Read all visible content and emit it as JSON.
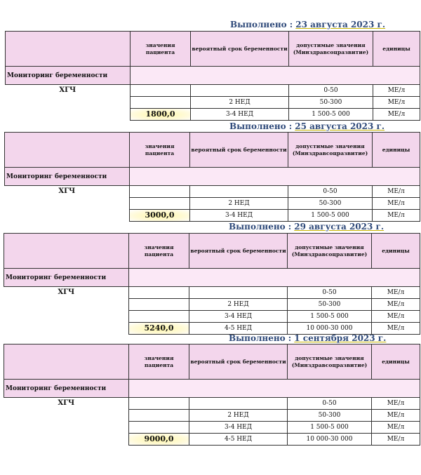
{
  "headings": [
    {
      "label": "Выполнено :",
      "date": "23 августа 2023 г."
    },
    {
      "label": "Выполнено :",
      "date": "25 августа 2023 г."
    },
    {
      "label": "Выполнено :",
      "date": "29 августа 2023 г."
    },
    {
      "label": "Выполнено :",
      "date": "1 сентября 2023 г."
    }
  ],
  "columns": {
    "patient": "значения пациента",
    "term": "вероятный срок беременности",
    "ref": "допустимые значения (Минздравсоцразвитие)",
    "units": "единицы"
  },
  "section": "Мониторинг беременности",
  "test": "ХГЧ",
  "reports": [
    {
      "value": "1800,0",
      "rows": [
        {
          "term": "",
          "ref": "0-50",
          "unit": "МЕ/л"
        },
        {
          "term": "2 НЕД",
          "ref": "50-300",
          "unit": "МЕ/л"
        },
        {
          "term": "3-4 НЕД",
          "ref": "1 500-5 000",
          "unit": "МЕ/л"
        }
      ]
    },
    {
      "value": "3000,0",
      "rows": [
        {
          "term": "",
          "ref": "0-50",
          "unit": "МЕ/л"
        },
        {
          "term": "2 НЕД",
          "ref": "50-300",
          "unit": "МЕ/л"
        },
        {
          "term": "3-4 НЕД",
          "ref": "1 500-5 000",
          "unit": "МЕ/л"
        }
      ]
    },
    {
      "value": "5240,0",
      "rows": [
        {
          "term": "",
          "ref": "0-50",
          "unit": "МЕ/л"
        },
        {
          "term": "2 НЕД",
          "ref": "50-300",
          "unit": "МЕ/л"
        },
        {
          "term": "3-4 НЕД",
          "ref": "1 500-5 000",
          "unit": "МЕ/л"
        },
        {
          "term": "4-5 НЕД",
          "ref": "10 000-30 000",
          "unit": "МЕ/л"
        }
      ]
    },
    {
      "value": "9000,0",
      "rows": [
        {
          "term": "",
          "ref": "0-50",
          "unit": "МЕ/л"
        },
        {
          "term": "2 НЕД",
          "ref": "50-300",
          "unit": "МЕ/л"
        },
        {
          "term": "3-4 НЕД",
          "ref": "1 500-5 000",
          "unit": "МЕ/л"
        },
        {
          "term": "4-5 НЕД",
          "ref": "10 000-30 000",
          "unit": "МЕ/л"
        }
      ]
    }
  ]
}
